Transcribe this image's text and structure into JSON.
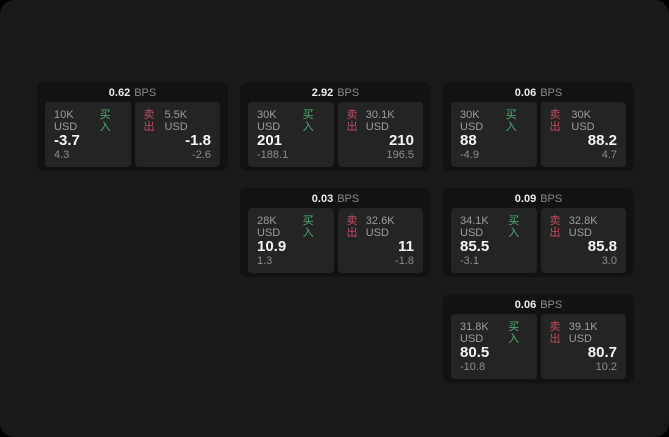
{
  "labels": {
    "bps_suffix": "BPS",
    "buy": "买入",
    "sell": "卖出"
  },
  "colors": {
    "buy": "#4fae73",
    "sell": "#c04a60",
    "page_bg": "#000000",
    "window_bg": "#191919",
    "card_bg": "#121212",
    "panel_bg": "#242424",
    "primary_text": "#f4f4f4",
    "secondary_text": "#9c9c9c"
  },
  "cards": [
    {
      "bps": "0.62",
      "buy": {
        "amount": "10K USD",
        "value": "-3.7",
        "delta": "4.3"
      },
      "sell": {
        "amount": "5.5K USD",
        "value": "-1.8",
        "delta": "-2.6"
      }
    },
    {
      "bps": "2.92",
      "buy": {
        "amount": "30K USD",
        "value": "201",
        "delta": "-188.1"
      },
      "sell": {
        "amount": "30.1K USD",
        "value": "210",
        "delta": "196.5"
      }
    },
    {
      "bps": "0.06",
      "buy": {
        "amount": "30K USD",
        "value": "88",
        "delta": "-4.9"
      },
      "sell": {
        "amount": "30K USD",
        "value": "88.2",
        "delta": "4.7"
      }
    },
    {
      "bps": "0.03",
      "buy": {
        "amount": "28K USD",
        "value": "10.9",
        "delta": "1.3"
      },
      "sell": {
        "amount": "32.6K USD",
        "value": "11",
        "delta": "-1.8"
      }
    },
    {
      "bps": "0.09",
      "buy": {
        "amount": "34.1K USD",
        "value": "85.5",
        "delta": "-3.1"
      },
      "sell": {
        "amount": "32.8K USD",
        "value": "85.8",
        "delta": "3.0"
      }
    },
    {
      "bps": "0.06",
      "buy": {
        "amount": "31.8K USD",
        "value": "80.5",
        "delta": "-10.8"
      },
      "sell": {
        "amount": "39.1K USD",
        "value": "80.7",
        "delta": "10.2"
      }
    }
  ]
}
